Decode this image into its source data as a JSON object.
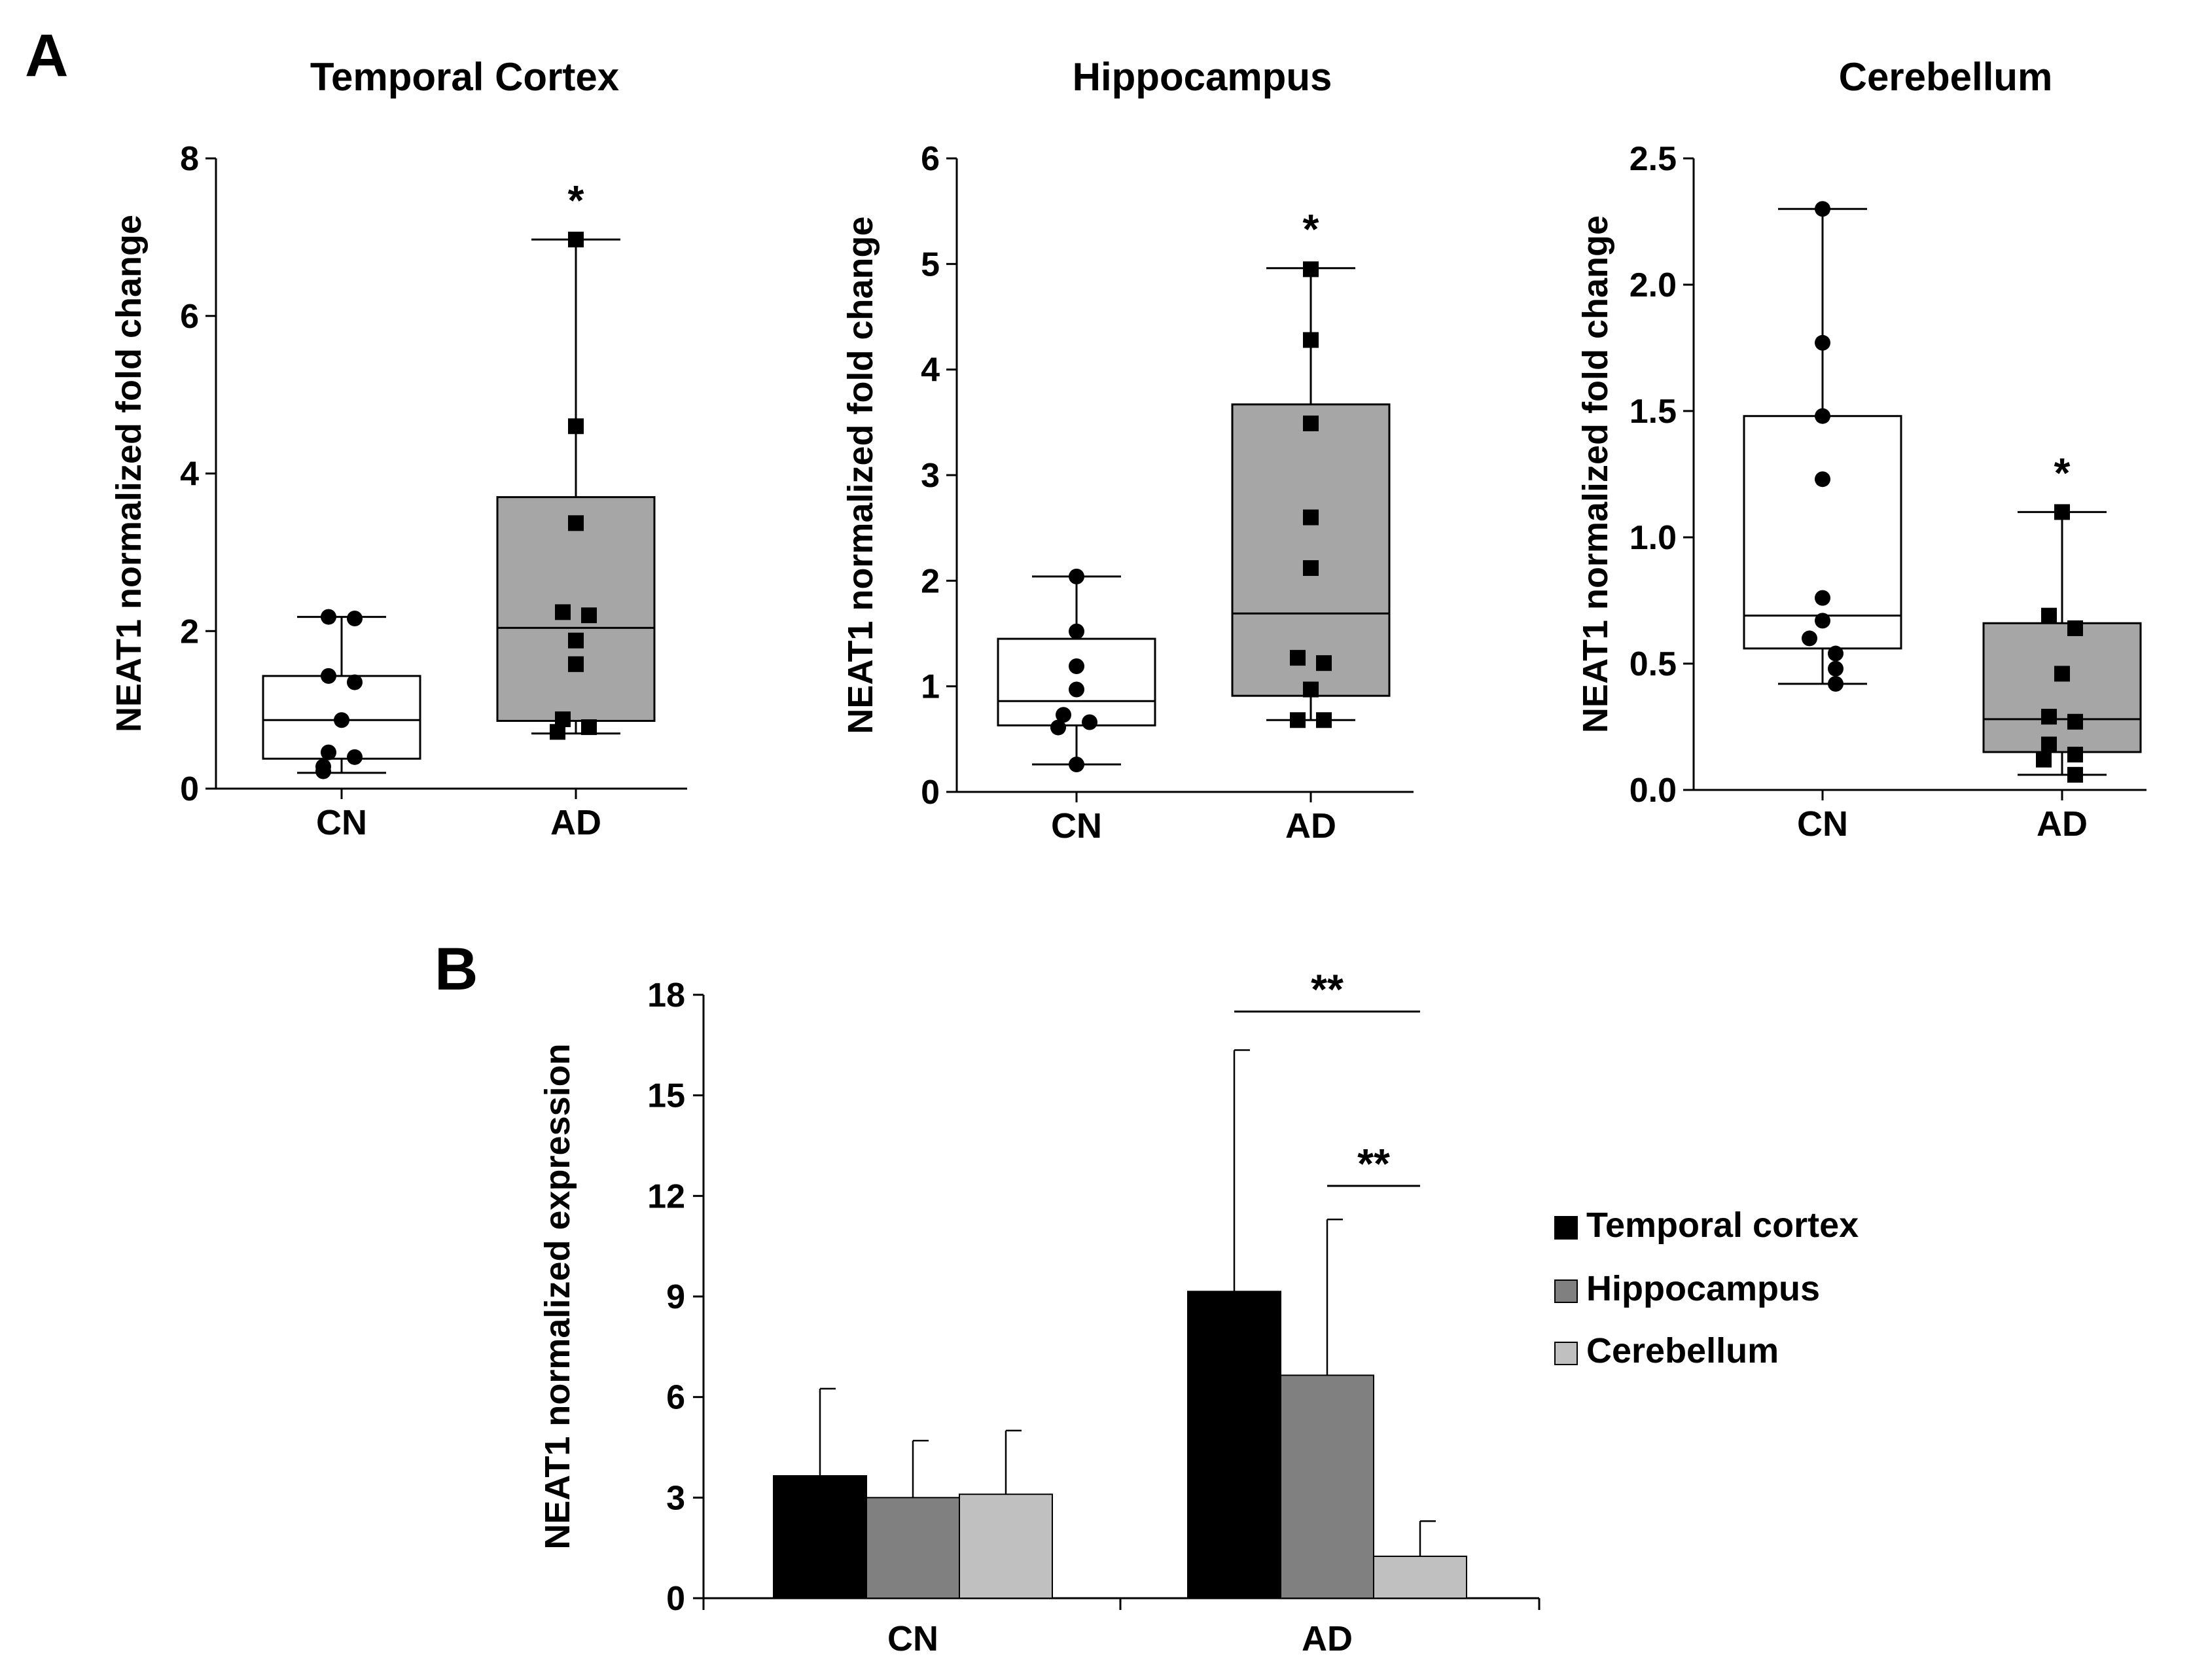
{
  "panels": {
    "a_letter": "A",
    "b_letter": "B"
  },
  "chart_data": [
    {
      "type": "box",
      "panel": "A",
      "title": "Temporal Cortex",
      "ylabel": "NEAT1 normalized fold change",
      "ylim": [
        0,
        8
      ],
      "yticks": [
        "0",
        "2",
        "4",
        "6",
        "8"
      ],
      "categories": [
        "CN",
        "AD"
      ],
      "groups": [
        {
          "name": "CN",
          "box_color": "#ffffff",
          "marker": "circle",
          "whisker_low": 0.2,
          "q1": 0.38,
          "median": 0.87,
          "q3": 1.43,
          "whisker_high": 2.18,
          "points": [
            2.18,
            2.16,
            1.43,
            1.35,
            0.87,
            0.46,
            0.4,
            0.28,
            0.22
          ]
        },
        {
          "name": "AD",
          "box_color": "#a6a6a6",
          "marker": "square",
          "significance": "*",
          "whisker_low": 0.7,
          "q1": 0.86,
          "median": 2.04,
          "q3": 3.7,
          "whisker_high": 6.97,
          "points": [
            6.97,
            4.6,
            3.37,
            2.24,
            2.2,
            1.88,
            1.58,
            0.88,
            0.78,
            0.72
          ]
        }
      ]
    },
    {
      "type": "box",
      "panel": "A",
      "title": "Hippocampus",
      "ylabel": "NEAT1 normalized fold change",
      "ylim": [
        0,
        6
      ],
      "yticks": [
        "0",
        "1",
        "2",
        "3",
        "4",
        "5",
        "6"
      ],
      "categories": [
        "CN",
        "AD"
      ],
      "groups": [
        {
          "name": "CN",
          "box_color": "#ffffff",
          "marker": "circle",
          "whisker_low": 0.26,
          "q1": 0.63,
          "median": 0.86,
          "q3": 1.45,
          "whisker_high": 2.04,
          "points": [
            2.04,
            1.52,
            1.19,
            0.97,
            0.73,
            0.66,
            0.61,
            0.26
          ]
        },
        {
          "name": "AD",
          "box_color": "#a6a6a6",
          "marker": "square",
          "significance": "*",
          "whisker_low": 0.68,
          "q1": 0.91,
          "median": 1.69,
          "q3": 3.67,
          "whisker_high": 4.96,
          "points": [
            4.95,
            4.28,
            3.49,
            2.6,
            2.12,
            1.27,
            1.22,
            0.97,
            0.68,
            0.68
          ]
        }
      ]
    },
    {
      "type": "box",
      "panel": "A",
      "title": "Cerebellum",
      "ylabel": "NEAT1 normalized fold change",
      "ylim": [
        0,
        2.5
      ],
      "yticks": [
        "0.0",
        "0.5",
        "1.0",
        "1.5",
        "2.0",
        "2.5"
      ],
      "categories": [
        "CN",
        "AD"
      ],
      "groups": [
        {
          "name": "CN",
          "box_color": "#ffffff",
          "marker": "circle",
          "whisker_low": 0.42,
          "q1": 0.56,
          "median": 0.69,
          "q3": 1.48,
          "whisker_high": 2.3,
          "points": [
            2.3,
            1.77,
            1.48,
            1.23,
            0.76,
            0.67,
            0.6,
            0.54,
            0.48,
            0.42
          ]
        },
        {
          "name": "AD",
          "box_color": "#a6a6a6",
          "marker": "square",
          "significance": "*",
          "whisker_low": 0.06,
          "q1": 0.15,
          "median": 0.28,
          "q3": 0.66,
          "whisker_high": 1.1,
          "points": [
            1.1,
            0.69,
            0.64,
            0.46,
            0.29,
            0.27,
            0.18,
            0.14,
            0.12,
            0.06
          ]
        }
      ]
    },
    {
      "type": "bar",
      "panel": "B",
      "ylabel": "NEAT1 normalized expression",
      "ylim": [
        0,
        18
      ],
      "yticks": [
        "0",
        "3",
        "6",
        "9",
        "12",
        "15",
        "18"
      ],
      "categories": [
        "CN",
        "AD"
      ],
      "series": [
        {
          "name": "Temporal cortex",
          "color": "#000000",
          "values": [
            3.65,
            9.15
          ],
          "errors": [
            2.6,
            7.2
          ]
        },
        {
          "name": "Hippocampus",
          "color": "#808080",
          "values": [
            3.0,
            6.65
          ],
          "errors": [
            1.7,
            4.65
          ]
        },
        {
          "name": "Cerebellum",
          "color": "#c0c0c0",
          "values": [
            3.1,
            1.25
          ],
          "errors": [
            1.9,
            1.05
          ]
        }
      ],
      "significance": [
        {
          "label": "**",
          "category": "AD",
          "from": "Temporal cortex",
          "to": "Cerebellum",
          "level": 17.5
        },
        {
          "label": "**",
          "category": "AD",
          "from": "Hippocampus",
          "to": "Cerebellum",
          "level": 12.3
        }
      ],
      "legend": "right"
    }
  ]
}
